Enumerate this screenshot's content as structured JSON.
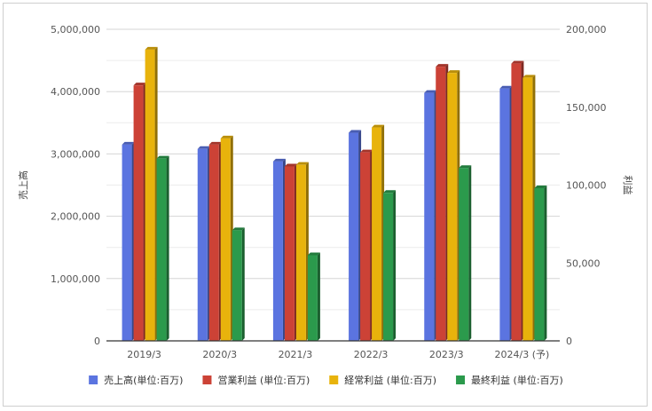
{
  "chart_data": {
    "type": "bar",
    "categories": [
      "2019/3",
      "2020/3",
      "2021/3",
      "2022/3",
      "2023/3",
      "2024/3 (予)"
    ],
    "series": [
      {
        "name": "売上高(単位:百万)",
        "axis": "left",
        "color": "#5b74e0",
        "values": [
          3150000,
          3080000,
          2880000,
          3340000,
          3980000,
          4050000
        ]
      },
      {
        "name": "営業利益 (単位:百万)",
        "axis": "right",
        "color": "#cc4236",
        "values": [
          164000,
          126000,
          112000,
          121000,
          176000,
          178000
        ]
      },
      {
        "name": "経常利益 (単位:百万)",
        "axis": "right",
        "color": "#e8b30c",
        "values": [
          187000,
          130000,
          113000,
          137000,
          172000,
          169000
        ]
      },
      {
        "name": "最終利益 (単位:百万)",
        "axis": "right",
        "color": "#2b9a4c",
        "values": [
          117000,
          71000,
          55000,
          95000,
          111000,
          98000
        ]
      }
    ],
    "ylabel": "売上高",
    "y2label": "利益",
    "ylim": [
      0,
      5000000
    ],
    "y2lim": [
      0,
      200000
    ],
    "yticks": [
      "0",
      "1,000,000",
      "2,000,000",
      "3,000,000",
      "4,000,000",
      "5,000,000"
    ],
    "y2ticks": [
      "0",
      "50,000",
      "100,000",
      "150,000",
      "200,000"
    ],
    "grid": true,
    "legend_position": "bottom"
  }
}
